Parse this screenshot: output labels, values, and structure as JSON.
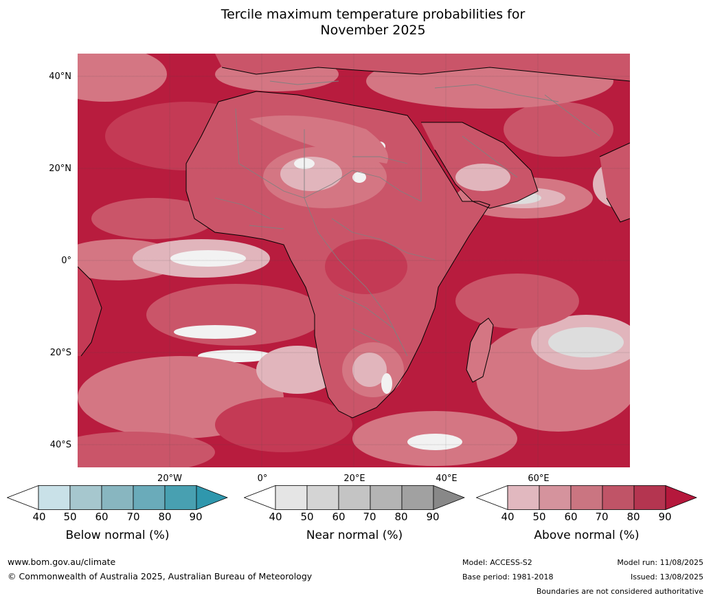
{
  "title_line1": "Tercile maximum temperature probabilities for",
  "title_line2": "November 2025",
  "lat_labels": [
    "40°N",
    "20°N",
    "0°",
    "20°S",
    "40°S"
  ],
  "lon_labels": [
    "20°W",
    "0°",
    "20°E",
    "40°E",
    "60°E"
  ],
  "colorbars": [
    {
      "title": "Below normal (%)",
      "ticks": [
        "40",
        "50",
        "60",
        "70",
        "80",
        "90"
      ],
      "colors": [
        "#ffffff",
        "#c9e1e8",
        "#a6c7ce",
        "#88b6c0",
        "#6aabba",
        "#48a0b1",
        "#2f97ad"
      ]
    },
    {
      "title": "Near normal (%)",
      "ticks": [
        "40",
        "50",
        "60",
        "70",
        "80",
        "90"
      ],
      "colors": [
        "#ffffff",
        "#e5e5e5",
        "#d4d4d4",
        "#c4c4c4",
        "#b4b4b4",
        "#a1a1a1",
        "#888888"
      ]
    },
    {
      "title": "Above normal (%)",
      "ticks": [
        "40",
        "50",
        "60",
        "70",
        "80",
        "90"
      ],
      "colors": [
        "#ffffff",
        "#e1b8bf",
        "#d5939d",
        "#ca7581",
        "#c05467",
        "#b43550",
        "#b5183c"
      ]
    }
  ],
  "map_colors": {
    "ocean": "#b81c3e",
    "band80": "#c43a55",
    "band70": "#ca5569",
    "band60": "#d47683",
    "band50": "#e1b5bc",
    "near": "#dddddd",
    "nearwhite": "#f2f2f2",
    "below": "#a6c7ce"
  },
  "footer": {
    "url": "www.bom.gov.au/climate",
    "copyright": "© Commonwealth of Australia 2025, Australian Bureau of Meteorology",
    "model": "Model: ACCESS-S2",
    "base_period": "Base period: 1981-2018",
    "model_run": "Model run: 11/08/2025",
    "issued": "Issued: 13/08/2025",
    "disclaimer": "Boundaries are not considered authoritative"
  }
}
